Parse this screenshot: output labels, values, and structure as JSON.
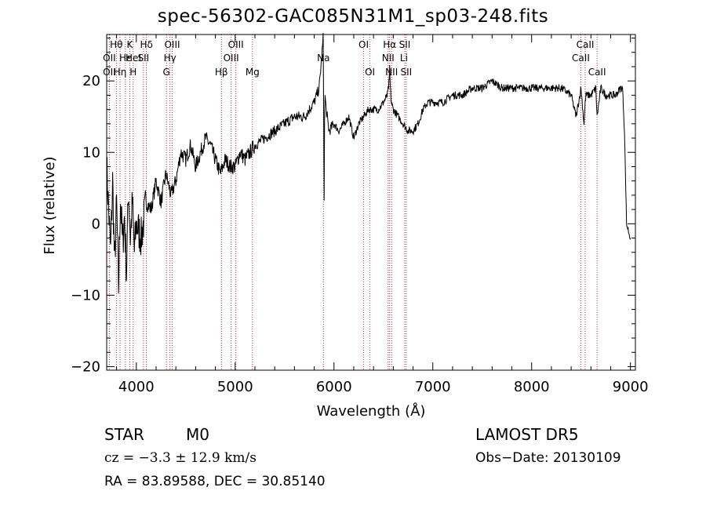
{
  "chart_data": {
    "type": "line",
    "title": "spec-56302-GAC085N31M1_sp03-248.fits",
    "xlabel": "Wavelength (Å)",
    "ylabel": "Flux (relative)",
    "xlim": [
      3700,
      9050
    ],
    "ylim": [
      -20.5,
      26.5
    ],
    "xticks": [
      4000,
      5000,
      6000,
      7000,
      8000,
      9000
    ],
    "yticks": [
      -20,
      -10,
      0,
      10,
      20
    ],
    "grid": false,
    "series": [
      {
        "x": [
          3700,
          3720,
          3740,
          3760,
          3780,
          3800,
          3820,
          3840,
          3860,
          3880,
          3900,
          3920,
          3940,
          3960,
          3980,
          4000,
          4050,
          4100,
          4150,
          4200,
          4250,
          4300,
          4350,
          4400,
          4450,
          4500,
          4550,
          4600,
          4650,
          4700,
          4750,
          4800,
          4850,
          4900,
          4950,
          5000,
          5050,
          5100,
          5150,
          5200,
          5300,
          5400,
          5500,
          5600,
          5700,
          5800,
          5850,
          5880,
          5890,
          5895,
          5900,
          5905,
          5910,
          5920,
          5950,
          6000,
          6050,
          6100,
          6150,
          6200,
          6250,
          6300,
          6350,
          6400,
          6450,
          6500,
          6540,
          6560,
          6563,
          6570,
          6580,
          6600,
          6650,
          6700,
          6750,
          6800,
          6850,
          6900,
          6950,
          7000,
          7100,
          7200,
          7300,
          7400,
          7500,
          7600,
          7700,
          7800,
          7900,
          8000,
          8100,
          8200,
          8300,
          8400,
          8450,
          8500,
          8530,
          8542,
          8550,
          8600,
          8650,
          8662,
          8700,
          8750,
          8800,
          8850,
          8900,
          8920,
          8940,
          8960,
          8980,
          9000
        ],
        "y": [
          8,
          2,
          -4,
          6,
          -6,
          3,
          -9,
          4,
          -3,
          1,
          -7,
          5,
          -2,
          3,
          -4,
          0,
          -2,
          3,
          2,
          6,
          3,
          7,
          4,
          6,
          10,
          9,
          11,
          8,
          10,
          12,
          11,
          9,
          7,
          9,
          8,
          8,
          10,
          9,
          10,
          11,
          12,
          13,
          14,
          15,
          15,
          17,
          19,
          24,
          26,
          18,
          4,
          15,
          18,
          16,
          13,
          14,
          13,
          14,
          15,
          12,
          14,
          15,
          16,
          16,
          16,
          17,
          18,
          20,
          22,
          19,
          17,
          16,
          15,
          14,
          13,
          13,
          14,
          16,
          17,
          17,
          17,
          18,
          18,
          19,
          19,
          20,
          19,
          19,
          19,
          19,
          19,
          19,
          19,
          18,
          15,
          19,
          14,
          17,
          18,
          18,
          19,
          15,
          19,
          18,
          18,
          18,
          19,
          19,
          13,
          0,
          -1,
          -2
        ]
      }
    ],
    "line_labels": [
      {
        "text": "Hθ",
        "wl": 3798,
        "row": 1
      },
      {
        "text": "OII",
        "wl": 3727,
        "row": 2
      },
      {
        "text": "OII",
        "wl": 3727,
        "row": 3
      },
      {
        "text": "K",
        "wl": 3934,
        "row": 1
      },
      {
        "text": "Hε",
        "wl": 3889,
        "row": 2
      },
      {
        "text": "Hη",
        "wl": 3835,
        "row": 3
      },
      {
        "text": "HeI",
        "wl": 3970,
        "row": 2
      },
      {
        "text": "H",
        "wl": 3968,
        "row": 3
      },
      {
        "text": "Hδ",
        "wl": 4102,
        "row": 1
      },
      {
        "text": "SII",
        "wl": 4072,
        "row": 2
      },
      {
        "text": "OIII",
        "wl": 4363,
        "row": 1
      },
      {
        "text": "Hγ",
        "wl": 4340,
        "row": 2
      },
      {
        "text": "G",
        "wl": 4305,
        "row": 3
      },
      {
        "text": "OIII",
        "wl": 5007,
        "row": 1
      },
      {
        "text": "OIII",
        "wl": 4959,
        "row": 2
      },
      {
        "text": "Hβ",
        "wl": 4861,
        "row": 3
      },
      {
        "text": "Mg",
        "wl": 5175,
        "row": 3
      },
      {
        "text": "Na",
        "wl": 5893,
        "row": 2
      },
      {
        "text": "OI",
        "wl": 6300,
        "row": 1
      },
      {
        "text": "OI",
        "wl": 6364,
        "row": 3
      },
      {
        "text": "Hα",
        "wl": 6563,
        "row": 1
      },
      {
        "text": "NII",
        "wl": 6548,
        "row": 2
      },
      {
        "text": "NII",
        "wl": 6583,
        "row": 3
      },
      {
        "text": "SII",
        "wl": 6716,
        "row": 1
      },
      {
        "text": "Li",
        "wl": 6708,
        "row": 2
      },
      {
        "text": "SII",
        "wl": 6731,
        "row": 3
      },
      {
        "text": "CaII",
        "wl": 8542,
        "row": 1
      },
      {
        "text": "CaII",
        "wl": 8498,
        "row": 2
      },
      {
        "text": "CaII",
        "wl": 8662,
        "row": 3
      }
    ],
    "line_marker_wavelengths": [
      3727,
      3798,
      3835,
      3889,
      3934,
      3968,
      4072,
      4102,
      4305,
      4340,
      4363,
      4861,
      4959,
      5007,
      5175,
      5893,
      6300,
      6364,
      6548,
      6563,
      6583,
      6716,
      6731,
      8498,
      8542,
      8662
    ],
    "colors": {
      "spectrum": "#000000",
      "markers": "#b0303a"
    }
  },
  "info": {
    "class": "STAR",
    "subclass": "M0",
    "survey": "LAMOST DR5",
    "cz": "cz = −3.3 ± 12.9 km/s",
    "obsdate": "Obs−Date: 20130109",
    "radec": "RA =  83.89588, DEC =  30.85140"
  }
}
